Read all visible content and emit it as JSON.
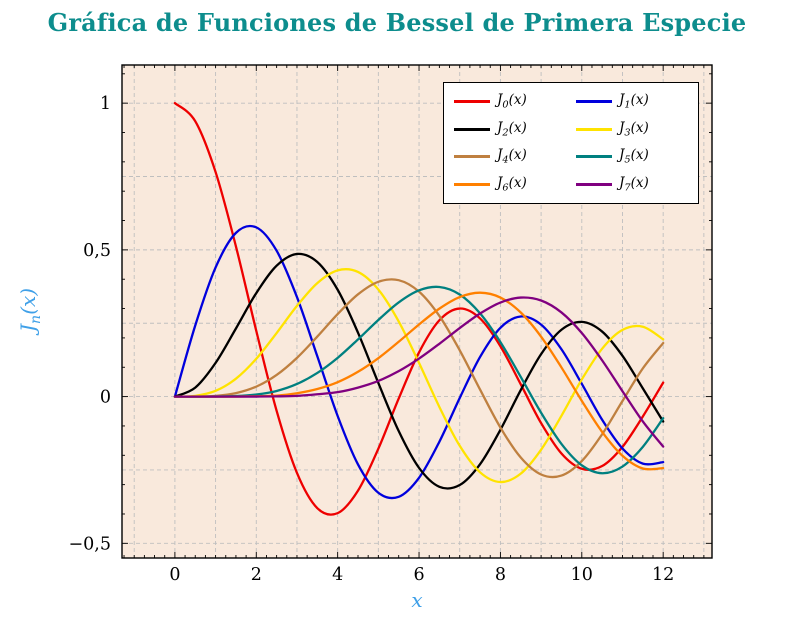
{
  "title": {
    "text": "Gráfica de Funciones de Bessel de Primera Especie",
    "color": "#0d8d8d"
  },
  "x_axis_label": "x",
  "y_axis_label": {
    "fn": "J",
    "sub": "n",
    "arg": "(x)"
  },
  "colors": {
    "axis_label": "#3fa0e8",
    "plot_background": "#f9e9dc",
    "grid": "#bfbfbf",
    "frame": "#000000",
    "tick_text": "#000000"
  },
  "chart_data": {
    "type": "line",
    "title": "Gráfica de Funciones de Bessel de Primera Especie",
    "xlabel": "x",
    "ylabel": "J_n(x)",
    "x_start": 0,
    "x_end": 12,
    "x_step": 0.5,
    "xlim": [
      -1.3,
      13.2
    ],
    "ylim": [
      -0.55,
      1.13
    ],
    "x_ticks": [
      0,
      2,
      4,
      6,
      8,
      10,
      12
    ],
    "x_tick_labels": [
      "0",
      "2",
      "4",
      "6",
      "8",
      "10",
      "12"
    ],
    "y_ticks": [
      -0.5,
      0,
      0.5,
      1
    ],
    "y_tick_labels": [
      "−0,5",
      "0",
      "0,5",
      "1"
    ],
    "grid": {
      "on": true,
      "style": "dashed",
      "x_step": 1,
      "y_step": 0.25
    },
    "minor_ticks": {
      "x_step": 0.25,
      "y_step": 0.1
    },
    "legend": {
      "position": "top-right",
      "columns": 2
    },
    "series": [
      {
        "name": "J0(x)",
        "label": {
          "fn": "J",
          "sub": "0",
          "arg": "(x)"
        },
        "color": "#ee0000",
        "values": [
          1.0,
          0.9385,
          0.7652,
          0.5118,
          0.2239,
          -0.0484,
          -0.2601,
          -0.3801,
          -0.3971,
          -0.3205,
          -0.1776,
          -0.0068,
          0.1506,
          0.2601,
          0.3001,
          0.2663,
          0.1717,
          0.0419,
          -0.0903,
          -0.1939,
          -0.2459,
          -0.2366,
          -0.1712,
          -0.0677,
          0.0477
        ]
      },
      {
        "name": "J1(x)",
        "label": {
          "fn": "J",
          "sub": "1",
          "arg": "(x)"
        },
        "color": "#0000dd",
        "values": [
          0.0,
          0.2423,
          0.4401,
          0.5579,
          0.5767,
          0.4971,
          0.3391,
          0.1374,
          -0.066,
          -0.2311,
          -0.3276,
          -0.3414,
          -0.2767,
          -0.1538,
          -0.0047,
          0.1352,
          0.2346,
          0.2731,
          0.2453,
          0.1613,
          0.0435,
          -0.0789,
          -0.1768,
          -0.2284,
          -0.2234
        ]
      },
      {
        "name": "J2(x)",
        "label": {
          "fn": "J",
          "sub": "2",
          "arg": "(x)"
        },
        "color": "#000000",
        "values": [
          0.0,
          0.0306,
          0.1149,
          0.2321,
          0.3528,
          0.4461,
          0.4861,
          0.4586,
          0.3641,
          0.2178,
          0.0466,
          -0.1173,
          -0.2429,
          -0.3074,
          -0.3014,
          -0.2303,
          -0.113,
          0.0223,
          0.1448,
          0.2278,
          0.2546,
          0.2216,
          0.139,
          0.028,
          -0.0849
        ]
      },
      {
        "name": "J3(x)",
        "label": {
          "fn": "J",
          "sub": "3",
          "arg": "(x)"
        },
        "color": "#ffe300",
        "values": [
          0.0,
          0.0026,
          0.0196,
          0.061,
          0.1289,
          0.2166,
          0.3091,
          0.3868,
          0.4302,
          0.4247,
          0.3648,
          0.2561,
          0.1148,
          -0.0353,
          -0.1676,
          -0.258,
          -0.2911,
          -0.2626,
          -0.1809,
          -0.0654,
          0.0584,
          0.1633,
          0.2273,
          0.2381,
          0.1951
        ]
      },
      {
        "name": "J4(x)",
        "label": {
          "fn": "J",
          "sub": "4",
          "arg": "(x)"
        },
        "color": "#bf8040",
        "values": [
          0.0,
          0.0002,
          0.0025,
          0.0118,
          0.034,
          0.0737,
          0.132,
          0.2045,
          0.2811,
          0.3485,
          0.3912,
          0.3967,
          0.3576,
          0.2748,
          0.1578,
          0.0239,
          -0.1054,
          -0.2077,
          -0.2655,
          -0.2691,
          -0.2196,
          -0.1283,
          -0.015,
          0.0962,
          0.1825
        ]
      },
      {
        "name": "J5(x)",
        "label": {
          "fn": "J",
          "sub": "5",
          "arg": "(x)"
        },
        "color": "#008080",
        "values": [
          0.0,
          0.0,
          0.0002,
          0.0018,
          0.007,
          0.0192,
          0.043,
          0.0806,
          0.1321,
          0.1949,
          0.2611,
          0.3209,
          0.3621,
          0.3735,
          0.3479,
          0.2835,
          0.1858,
          0.0671,
          -0.055,
          -0.1612,
          -0.2341,
          -0.2611,
          -0.2383,
          -0.1712,
          -0.0735
        ]
      },
      {
        "name": "J6(x)",
        "label": {
          "fn": "J",
          "sub": "6",
          "arg": "(x)"
        },
        "color": "#ff8000",
        "values": [
          0.0,
          0.0,
          0.0,
          0.0002,
          0.0012,
          0.0031,
          0.0114,
          0.0258,
          0.0491,
          0.0846,
          0.131,
          0.1868,
          0.2458,
          0.2998,
          0.3392,
          0.3541,
          0.3376,
          0.2866,
          0.2043,
          0.0994,
          -0.0145,
          -0.1204,
          -0.2016,
          -0.2451,
          -0.2437
        ]
      },
      {
        "name": "J7(x)",
        "label": {
          "fn": "J",
          "sub": "7",
          "arg": "(x)"
        },
        "color": "#800080",
        "values": [
          0.0,
          0.0,
          0.0,
          0.0,
          0.0002,
          0.0008,
          0.0025,
          0.0079,
          0.0152,
          0.0307,
          0.0534,
          0.0867,
          0.1296,
          0.18,
          0.2336,
          0.2831,
          0.3206,
          0.3375,
          0.3275,
          0.2868,
          0.2167,
          0.1235,
          0.0184,
          -0.0846,
          -0.1703
        ]
      }
    ]
  }
}
